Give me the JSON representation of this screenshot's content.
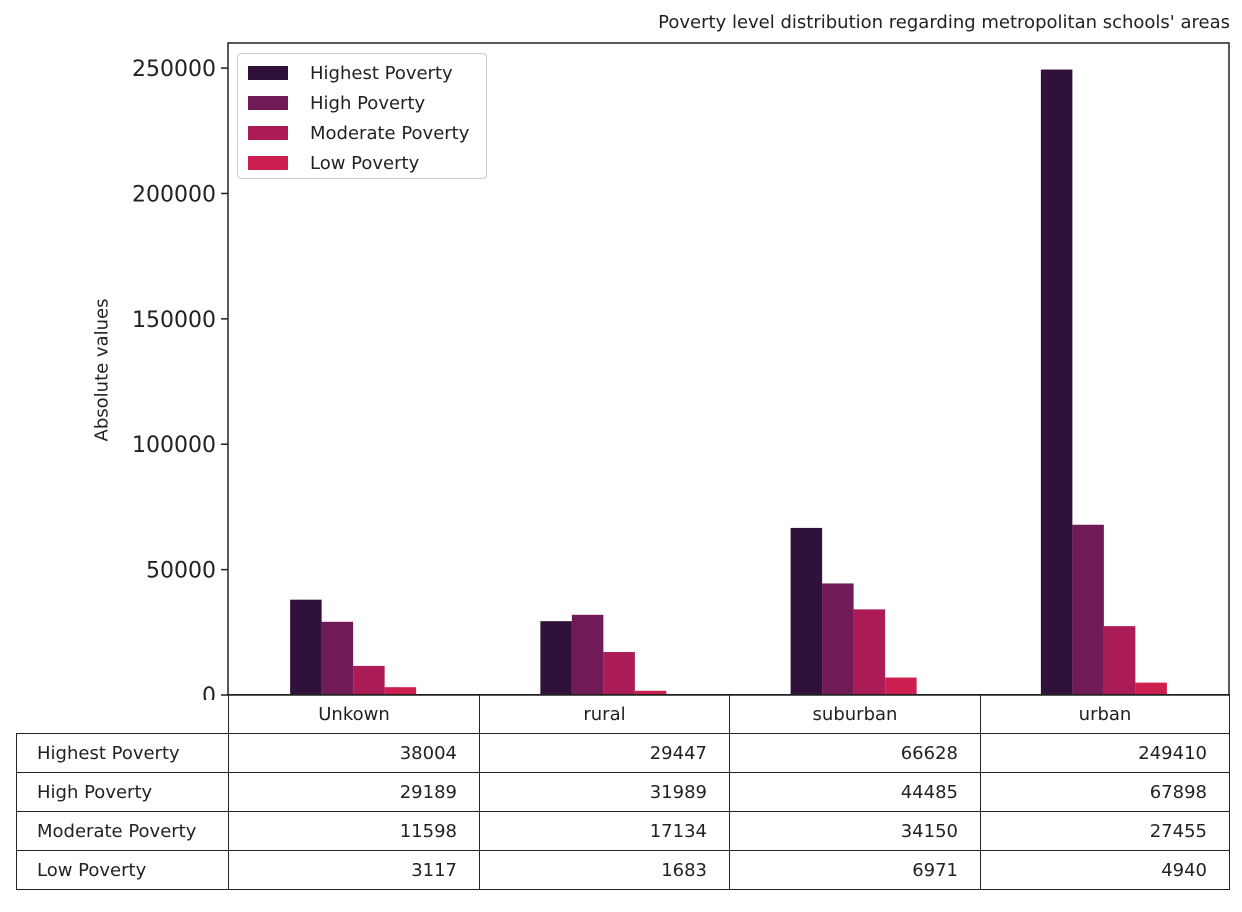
{
  "chart_data": {
    "type": "bar",
    "title": "Poverty level distribution regarding metropolitan schools' areas",
    "ylabel": "Absolute values",
    "categories": [
      "Unkown",
      "rural",
      "suburban",
      "urban"
    ],
    "series": [
      {
        "name": "Highest Poverty",
        "color": "#2f1139",
        "values": [
          38004,
          29447,
          66628,
          249410
        ]
      },
      {
        "name": "High Poverty",
        "color": "#701a57",
        "values": [
          29189,
          31989,
          44485,
          67898
        ]
      },
      {
        "name": "Moderate Poverty",
        "color": "#ab1b56",
        "values": [
          11598,
          17134,
          34150,
          27455
        ]
      },
      {
        "name": "Low Poverty",
        "color": "#cc1f50",
        "values": [
          3117,
          1683,
          6971,
          4940
        ]
      }
    ],
    "ylim": [
      0,
      260000
    ],
    "yticks": [
      0,
      50000,
      100000,
      150000,
      200000,
      250000
    ],
    "grid": false,
    "legend_position": "top-left"
  },
  "table": {
    "headers": [
      "Unkown",
      "rural",
      "suburban",
      "urban"
    ],
    "rows": [
      {
        "label": "Highest Poverty",
        "values": [
          "38004",
          "29447",
          "66628",
          "249410"
        ]
      },
      {
        "label": "High Poverty",
        "values": [
          "29189",
          "31989",
          "44485",
          "67898"
        ]
      },
      {
        "label": "Moderate Poverty",
        "values": [
          "11598",
          "17134",
          "34150",
          "27455"
        ]
      },
      {
        "label": "Low Poverty",
        "values": [
          "3117",
          "1683",
          "6971",
          "4940"
        ]
      }
    ]
  }
}
